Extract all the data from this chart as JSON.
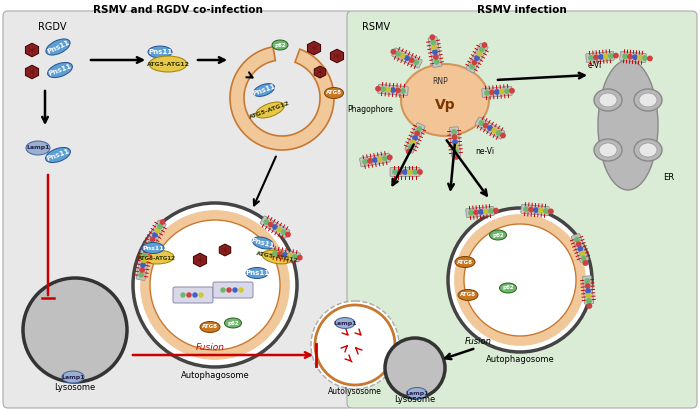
{
  "title_left": "RSMV and RGDV co-infection",
  "title_right": "RSMV infection",
  "left_bg": "#e8e8e8",
  "right_bg": "#daecd5",
  "border_color": "#999999",
  "label_rgdv": "RGDV",
  "label_rsmv": "RSMV",
  "label_pns11": "Pns11",
  "label_atg5atg12": "ATG5-ATG12",
  "label_atg8": "ATG8",
  "label_p62": "p62",
  "label_lamp1": "Lamp1",
  "label_phagophore": "Phagophore",
  "label_autophagosome_left": "Autophagosome",
  "label_autophagosome_right": "Autophagosome",
  "label_lysosome_left": "Lysosome",
  "label_lysosome_right": "Lysosome",
  "label_autolysosome": "Autolysosome",
  "label_fusion_left": "Fusion",
  "label_fusion_right": "Fusion",
  "label_rnp": "RNP",
  "label_vp": "Vp",
  "label_ne_vi": "ne-Vi",
  "label_e_vi": "e-Vi",
  "label_er": "ER",
  "virus_color": "#8B2020",
  "pns11_color": "#5b9fd4",
  "atg5atg12_color": "#e8c84a",
  "atg8_color": "#c87820",
  "p62_color": "#6db86d",
  "lamp1_color": "#9ab0cc",
  "phagophore_fill": "#f0c89a",
  "phagophore_edge": "#c87830",
  "autophagosome_outer": "#444444",
  "autophagosome_membrane": "#f0c89a",
  "lysosome_fill": "#c0c0c0",
  "lysosome_edge": "#333333",
  "vp_fill": "#f5c090",
  "er_fill": "#b8b8b8",
  "autolysosome_edge": "#c87830",
  "red_arrow": "#cc0000"
}
